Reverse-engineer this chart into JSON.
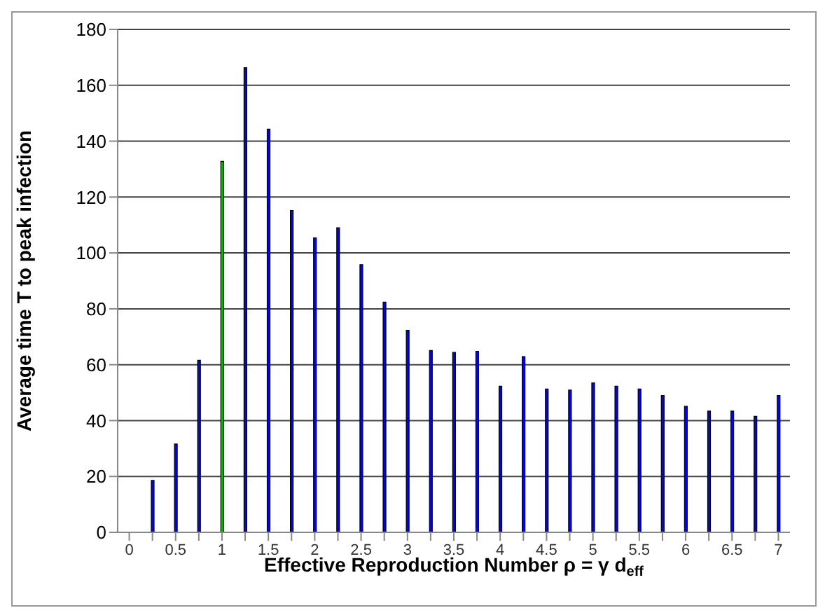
{
  "chart_data": {
    "type": "bar",
    "xlabel": "Effective Reproduction Number  ρ = γ d$_{eff}$",
    "ylabel": "Average time T to peak infection",
    "categories": [
      "0",
      null,
      "0.5",
      null,
      "1",
      null,
      "1.5",
      null,
      "2",
      null,
      "2.5",
      null,
      "3",
      null,
      "3.5",
      null,
      "4",
      null,
      "4.5",
      null,
      "5",
      null,
      "5.5",
      null,
      "6",
      null,
      "6.5",
      null,
      "7"
    ],
    "values": [
      null,
      18.6,
      31.6,
      61.6,
      132.8,
      166.3,
      144.3,
      115.2,
      105.4,
      109,
      95.8,
      82.4,
      72.3,
      65.1,
      64.4,
      64.8,
      52.3,
      62.9,
      51.3,
      50.9,
      53.5,
      52.3,
      51.3,
      49,
      45.1,
      43.4,
      43.4,
      41.5,
      49
    ],
    "colors": [
      "#0000ff",
      "#0000ff",
      "#0000ff",
      "#0000ff",
      "#00c000",
      "#0000ff",
      "#0000ff",
      "#0000ff",
      "#0000ff",
      "#0000ff",
      "#0000ff",
      "#0000ff",
      "#0000ff",
      "#0000ff",
      "#0000ff",
      "#0000ff",
      "#0000ff",
      "#0000ff",
      "#0000ff",
      "#0000ff",
      "#0000ff",
      "#0000ff",
      "#0000ff",
      "#0000ff",
      "#0000ff",
      "#0000ff",
      "#0000ff",
      "#0000ff",
      "#0000ff"
    ],
    "ylim": [
      0,
      180
    ],
    "yticks": [
      0,
      20,
      40,
      60,
      80,
      100,
      120,
      140,
      160,
      180
    ],
    "grid": "y"
  }
}
